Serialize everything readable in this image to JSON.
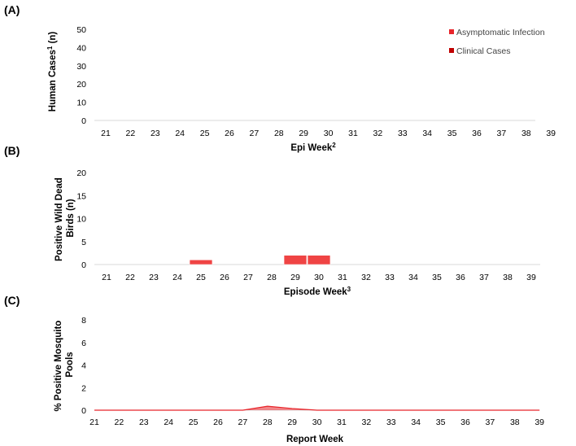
{
  "chart_data": [
    {
      "panel_label": "(A)",
      "type": "bar",
      "categories": [
        "21",
        "22",
        "23",
        "24",
        "25",
        "26",
        "27",
        "28",
        "29",
        "30",
        "31",
        "32",
        "33",
        "34",
        "35",
        "36",
        "37",
        "38",
        "39"
      ],
      "series": [
        {
          "name": "Asymptomatic Infection",
          "color": "#e8242a",
          "values": [
            0,
            0,
            0,
            0,
            0,
            0,
            0,
            0,
            0,
            0,
            0,
            0,
            0,
            0,
            0,
            0,
            0,
            0,
            0
          ]
        },
        {
          "name": "Clinical Cases",
          "color": "#c00000",
          "values": [
            0,
            0,
            0,
            0,
            0,
            0,
            0,
            0,
            0,
            0,
            0,
            0,
            0,
            0,
            0,
            0,
            0,
            0,
            0
          ]
        }
      ],
      "xlabel": "Epi Week",
      "xlabel_sup": "2",
      "ylabel": "Human Cases",
      "ylabel_sup": "1",
      "ylabel_suffix": " (n)",
      "ylim": [
        0,
        50
      ],
      "yticks": [
        0,
        10,
        20,
        30,
        40,
        50
      ],
      "legend_position": "top-right",
      "grid": false
    },
    {
      "panel_label": "(B)",
      "type": "bar",
      "categories": [
        "21",
        "22",
        "23",
        "24",
        "25",
        "26",
        "27",
        "28",
        "29",
        "30",
        "31",
        "32",
        "33",
        "34",
        "35",
        "36",
        "37",
        "38",
        "39"
      ],
      "series": [
        {
          "color": "#ef4444",
          "values": [
            0,
            0,
            0,
            0,
            1,
            0,
            0,
            0,
            2,
            2,
            0,
            0,
            0,
            0,
            0,
            0,
            0,
            0,
            0
          ]
        }
      ],
      "xlabel": "Episode Week",
      "xlabel_sup": "3",
      "ylabel_lines": [
        "Positive Wild Dead",
        "Birds (n)"
      ],
      "ylim": [
        0,
        20
      ],
      "yticks": [
        0,
        5,
        10,
        15,
        20
      ],
      "grid": false
    },
    {
      "panel_label": "(C)",
      "type": "area",
      "categories": [
        "21",
        "22",
        "23",
        "24",
        "25",
        "26",
        "27",
        "28",
        "29",
        "30",
        "31",
        "32",
        "33",
        "34",
        "35",
        "36",
        "37",
        "38",
        "39"
      ],
      "series": [
        {
          "color": "#e8242a",
          "values": [
            0,
            0,
            0,
            0,
            0,
            0,
            0,
            0.35,
            0.15,
            0,
            0,
            0,
            0,
            0,
            0,
            0,
            0,
            0,
            0
          ]
        }
      ],
      "xlabel": "Report Week",
      "ylabel_lines": [
        "% Positive Mosquito",
        "Pools"
      ],
      "ylim": [
        0,
        8
      ],
      "yticks": [
        0,
        2,
        4,
        6,
        8
      ],
      "grid": false
    }
  ]
}
